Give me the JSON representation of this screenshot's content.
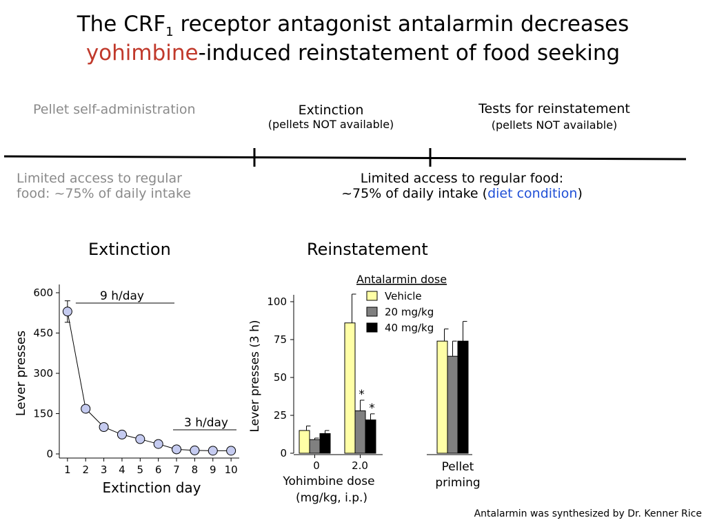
{
  "slide": {
    "title_part1": "The CRF",
    "title_subscript": "1",
    "title_part2": " receptor antagonist antalarmin decreases",
    "title_red": "yohimbine",
    "title_rest": "-induced reinstatement of food seeking",
    "colors": {
      "red": "#c0392b",
      "blue": "#1f4fd6",
      "gray": "#8a8a8a"
    }
  },
  "timeline": {
    "phase1_label": "Pellet self-administration",
    "phase2_label": "Extinction",
    "phase2_sub": "(pellets NOT available)",
    "phase3_label": "Tests for reinstatement",
    "phase3_sub": "(pellets NOT available)",
    "diet1_line1": "Limited access to regular",
    "diet1_line2": "food: ~75% of daily intake",
    "diet2_line1": "Limited access to regular food:",
    "diet2_line2_pre": "~75% of daily intake (",
    "diet2_line2_blue": "diet condition",
    "diet2_line2_post": ")"
  },
  "headings": {
    "extinction": "Extinction",
    "reinstatement": "Reinstatement"
  },
  "credit": "Antalarmin was synthesized by Dr. Kenner Rice",
  "chart_data": [
    {
      "type": "line",
      "title": "Extinction",
      "xlabel": "Extinction day",
      "ylabel": "Lever presses",
      "x": [
        1,
        2,
        3,
        4,
        5,
        6,
        7,
        8,
        9,
        10
      ],
      "y": [
        530,
        168,
        100,
        72,
        55,
        37,
        17,
        13,
        12,
        12
      ],
      "error_first": 40,
      "ylim": [
        0,
        600
      ],
      "yticks": [
        0,
        150,
        300,
        450,
        600
      ],
      "annotations": [
        {
          "text": "9 h/day",
          "from_day": 1,
          "to_day": 7
        },
        {
          "text": "3 h/day",
          "from_day": 7,
          "to_day": 10
        }
      ],
      "marker_color": "#c5cbf0"
    },
    {
      "type": "bar",
      "title": "Reinstatement",
      "ylabel": "Lever presses (3 h)",
      "xlabel_line1": "Yohimbine dose",
      "xlabel_line2": "(mg/kg, i.p.)",
      "group2_label_line1": "Pellet",
      "group2_label_line2": "priming",
      "legend_title": "Antalarmin dose",
      "ylim": [
        0,
        100
      ],
      "yticks": [
        0,
        25,
        50,
        75,
        100
      ],
      "categories": [
        "0",
        "2.0",
        "Pellet priming"
      ],
      "series": [
        {
          "name": "Vehicle",
          "color": "#ffffa6",
          "values": [
            15,
            86,
            74
          ],
          "errors": [
            3,
            19,
            8
          ]
        },
        {
          "name": "20 mg/kg",
          "color": "#808080",
          "values": [
            9,
            28,
            64
          ],
          "errors": [
            1,
            7,
            10
          ]
        },
        {
          "name": "40 mg/kg",
          "color": "#000000",
          "values": [
            13,
            22,
            74
          ],
          "errors": [
            2,
            4,
            13
          ]
        }
      ],
      "significance": [
        {
          "category": "2.0",
          "series": "20 mg/kg",
          "text": "*"
        },
        {
          "category": "2.0",
          "series": "40 mg/kg",
          "text": "*"
        }
      ]
    }
  ]
}
